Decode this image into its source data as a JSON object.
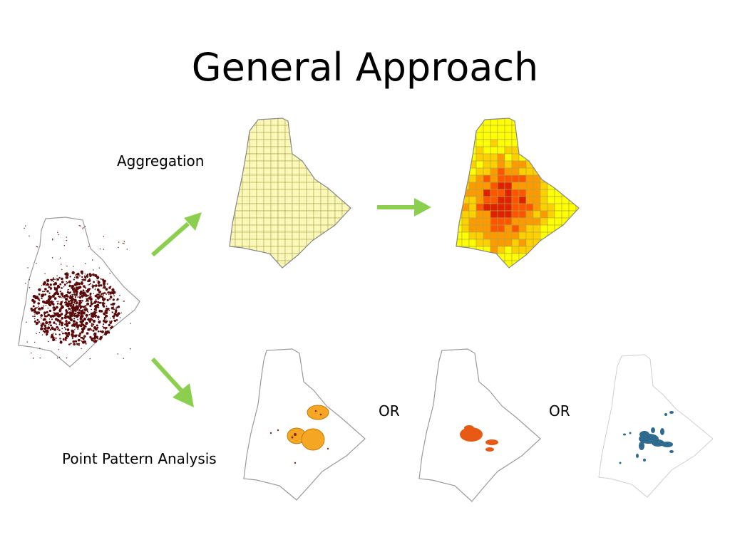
{
  "slide": {
    "title": "General Approach",
    "labels": {
      "aggregation": "Aggregation",
      "point_pattern": "Point Pattern Analysis",
      "or_first": "OR",
      "or_second": "OR"
    }
  },
  "maps": [
    {
      "name": "raw-points-map",
      "fill": "#5a0a0a"
    },
    {
      "name": "aggregation-grid-map",
      "fill": "#fbf7b8"
    },
    {
      "name": "aggregation-heat-map",
      "fill": "#ff9900"
    },
    {
      "name": "kernel-circles-map",
      "fill": "#f5a623"
    },
    {
      "name": "cluster-ellipses-map",
      "fill": "#e65a14"
    },
    {
      "name": "hotspot-blue-map",
      "fill": "#2f6a8f"
    }
  ],
  "arrows": {
    "color": "#8ccf4f",
    "icons": [
      "arrow-up-right-icon",
      "arrow-right-icon",
      "arrow-down-right-icon"
    ]
  },
  "heat_palette": [
    "#ffff00",
    "#ffd000",
    "#ff9900",
    "#ff5500",
    "#e02000",
    "#a00000"
  ],
  "outline_color": "#8a8a8a"
}
